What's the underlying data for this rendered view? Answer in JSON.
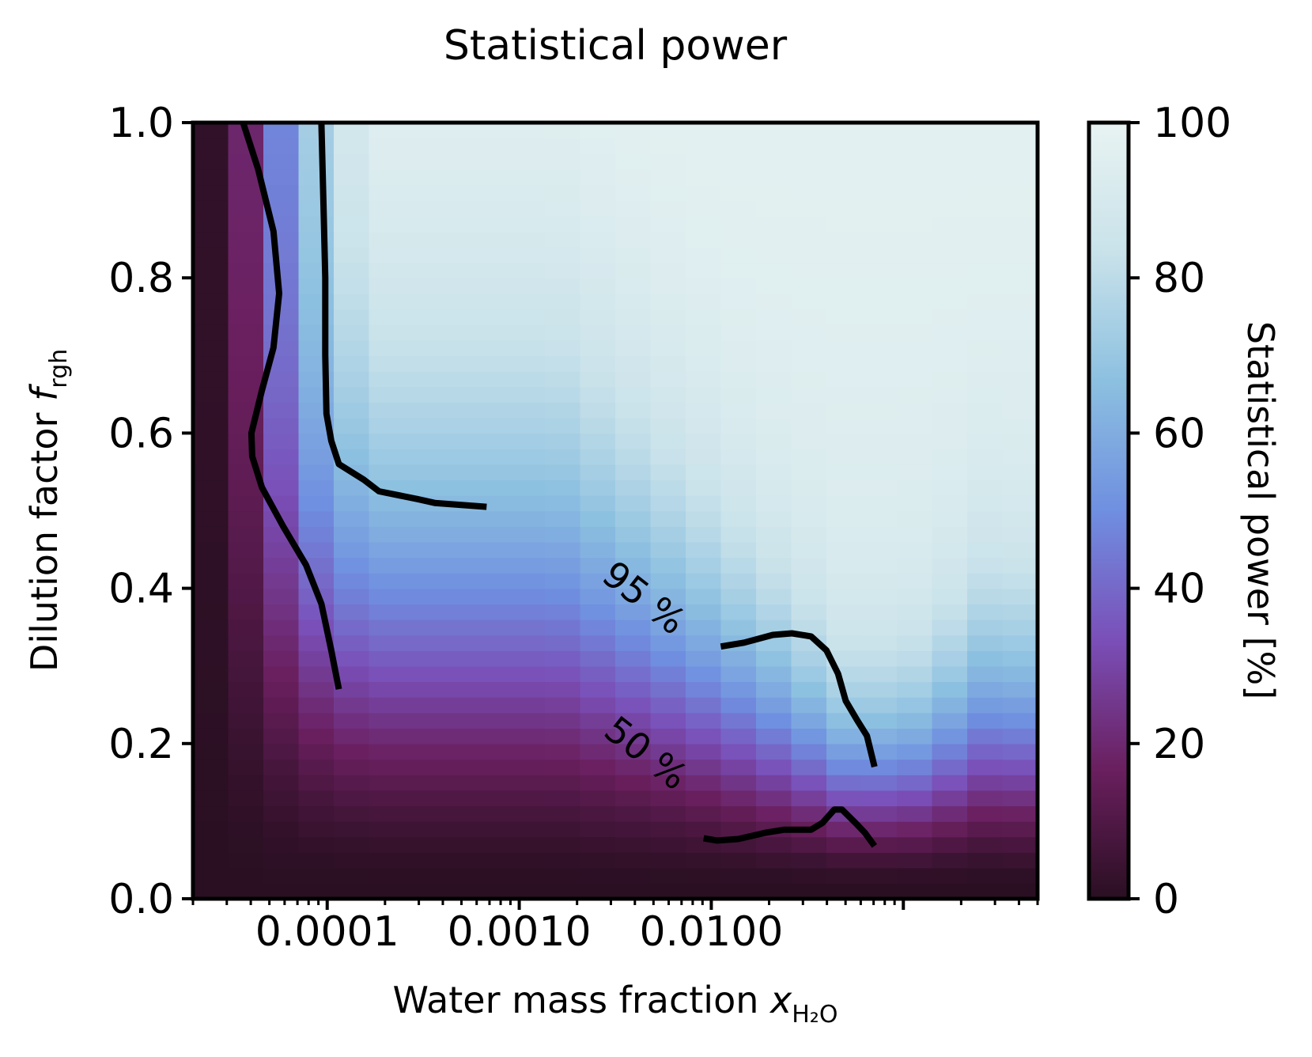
{
  "chart_data": {
    "type": "heatmap",
    "title": "Statistical power",
    "xlabel": {
      "main": "Water mass fraction ",
      "var": "x",
      "sub": "H₂O"
    },
    "ylabel": {
      "main": "Dilution factor ",
      "var": "f",
      "sub": "rgh"
    },
    "xscale": "log",
    "xlim": [
      2e-05,
      0.5
    ],
    "ylim": [
      0.0,
      1.0
    ],
    "xticks": [
      0.0001,
      0.001,
      0.01
    ],
    "xtick_labels": [
      "0.0001",
      "0.0010",
      "0.0100"
    ],
    "yticks": [
      0.0,
      0.2,
      0.4,
      0.6,
      0.8,
      1.0
    ],
    "ytick_labels": [
      "0.0",
      "0.2",
      "0.4",
      "0.6",
      "0.8",
      "1.0"
    ],
    "colorbar": {
      "label": "Statistical power [%]",
      "range": [
        0,
        100
      ],
      "ticks": [
        0,
        20,
        40,
        60,
        80,
        100
      ],
      "tick_labels": [
        "0",
        "20",
        "40",
        "60",
        "80",
        "100"
      ],
      "colors": [
        "#2a0f22",
        "#6a1f5e",
        "#7a4fb8",
        "#6f8fe0",
        "#8cc0e0",
        "#c9e2ea",
        "#e8f3f2"
      ]
    },
    "grid": {
      "nx": 24,
      "ny": 50
    },
    "power_model": "estimated from image colors",
    "contours": [
      {
        "level": 50,
        "label": "50 %",
        "lines": [
          [
            [
              3.65e-05,
              1.0
            ],
            [
              4.37e-05,
              0.94
            ],
            [
              5.25e-05,
              0.86
            ],
            [
              5.62e-05,
              0.78
            ],
            [
              5.25e-05,
              0.71
            ],
            [
              4.57e-05,
              0.655
            ],
            [
              4.03e-05,
              0.6
            ],
            [
              4.07e-05,
              0.57
            ],
            [
              4.57e-05,
              0.53
            ],
            [
              5.89e-05,
              0.48
            ],
            [
              7.76e-05,
              0.43
            ],
            [
              9.33e-05,
              0.38
            ],
            [
              0.000105,
              0.32
            ],
            [
              0.000115,
              0.27
            ]
          ],
          [
            [
              0.00912,
              0.078
            ],
            [
              0.0107,
              0.075
            ],
            [
              0.0138,
              0.077
            ],
            [
              0.0191,
              0.085
            ],
            [
              0.024,
              0.089
            ],
            [
              0.0295,
              0.089
            ],
            [
              0.0331,
              0.089
            ],
            [
              0.038,
              0.098
            ],
            [
              0.0437,
              0.115
            ],
            [
              0.0479,
              0.115
            ],
            [
              0.0562,
              0.098
            ],
            [
              0.0631,
              0.085
            ],
            [
              0.0708,
              0.068
            ]
          ]
        ]
      },
      {
        "level": 95,
        "label": "95 %",
        "lines": [
          [
            [
              9.33e-05,
              1.0
            ],
            [
              9.55e-05,
              0.9
            ],
            [
              9.77e-05,
              0.8
            ],
            [
              9.77e-05,
              0.7
            ],
            [
              9.91e-05,
              0.625
            ],
            [
              0.000105,
              0.59
            ],
            [
              0.000115,
              0.56
            ],
            [
              0.000155,
              0.54
            ],
            [
              0.000186,
              0.525
            ],
            [
              0.000295,
              0.515
            ],
            [
              0.000363,
              0.51
            ],
            [
              0.000676,
              0.505
            ]
          ],
          [
            [
              0.0112,
              0.325
            ],
            [
              0.0148,
              0.33
            ],
            [
              0.0209,
              0.34
            ],
            [
              0.0263,
              0.342
            ],
            [
              0.0331,
              0.338
            ],
            [
              0.0398,
              0.32
            ],
            [
              0.0457,
              0.29
            ],
            [
              0.0501,
              0.255
            ],
            [
              0.0575,
              0.23
            ],
            [
              0.0646,
              0.21
            ],
            [
              0.0708,
              0.17
            ]
          ]
        ]
      }
    ]
  }
}
